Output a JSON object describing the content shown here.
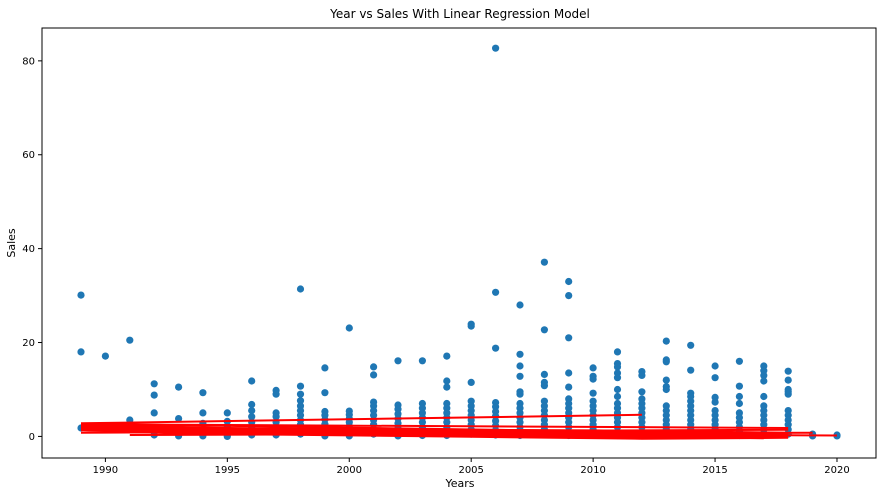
{
  "chart_data": {
    "type": "scatter",
    "title": "Year vs Sales With Linear Regression Model",
    "xlabel": "Years",
    "ylabel": "Sales",
    "xlim": [
      1987.4,
      2021.6
    ],
    "ylim": [
      -4.6,
      87.0
    ],
    "xticks": [
      1990,
      1995,
      2000,
      2005,
      2010,
      2015,
      2020
    ],
    "yticks": [
      0,
      20,
      40,
      60,
      80
    ],
    "grid": false,
    "legend": "none",
    "colors": {
      "points": "#1f77b4",
      "regression": "#ff0000"
    },
    "points": [
      [
        1989,
        30.1
      ],
      [
        1989,
        18.0
      ],
      [
        1989,
        1.8
      ],
      [
        1990,
        17.1
      ],
      [
        1990,
        2.1
      ],
      [
        1991,
        20.5
      ],
      [
        1991,
        3.5
      ],
      [
        1991,
        2.2
      ],
      [
        1992,
        11.2
      ],
      [
        1992,
        8.8
      ],
      [
        1992,
        5.0
      ],
      [
        1992,
        1.2
      ],
      [
        1992,
        0.3
      ],
      [
        1993,
        10.5
      ],
      [
        1993,
        3.8
      ],
      [
        1993,
        1.5
      ],
      [
        1993,
        0.1
      ],
      [
        1994,
        9.3
      ],
      [
        1994,
        5.0
      ],
      [
        1994,
        2.8
      ],
      [
        1994,
        1.5
      ],
      [
        1994,
        0.5
      ],
      [
        1994,
        0.1
      ],
      [
        1995,
        5.0
      ],
      [
        1995,
        3.2
      ],
      [
        1995,
        2.0
      ],
      [
        1995,
        1.0
      ],
      [
        1995,
        0.3
      ],
      [
        1995,
        0.0
      ],
      [
        1996,
        11.8
      ],
      [
        1996,
        6.8
      ],
      [
        1996,
        5.5
      ],
      [
        1996,
        4.2
      ],
      [
        1996,
        3.0
      ],
      [
        1996,
        2.0
      ],
      [
        1996,
        1.0
      ],
      [
        1996,
        0.3
      ],
      [
        1997,
        9.8
      ],
      [
        1997,
        9.0
      ],
      [
        1997,
        5.0
      ],
      [
        1997,
        4.2
      ],
      [
        1997,
        3.0
      ],
      [
        1997,
        2.0
      ],
      [
        1997,
        1.0
      ],
      [
        1997,
        0.3
      ],
      [
        1998,
        31.4
      ],
      [
        1998,
        10.7
      ],
      [
        1998,
        9.0
      ],
      [
        1998,
        7.6
      ],
      [
        1998,
        6.5
      ],
      [
        1998,
        5.5
      ],
      [
        1998,
        4.5
      ],
      [
        1998,
        3.5
      ],
      [
        1998,
        2.5
      ],
      [
        1998,
        1.5
      ],
      [
        1998,
        0.5
      ],
      [
        1999,
        14.6
      ],
      [
        1999,
        9.3
      ],
      [
        1999,
        5.3
      ],
      [
        1999,
        4.5
      ],
      [
        1999,
        3.6
      ],
      [
        1999,
        2.6
      ],
      [
        1999,
        1.6
      ],
      [
        1999,
        0.6
      ],
      [
        1999,
        0.1
      ],
      [
        2000,
        23.1
      ],
      [
        2000,
        5.4
      ],
      [
        2000,
        4.6
      ],
      [
        2000,
        3.8
      ],
      [
        2000,
        3.0
      ],
      [
        2000,
        2.2
      ],
      [
        2000,
        1.4
      ],
      [
        2000,
        0.6
      ],
      [
        2000,
        0.1
      ],
      [
        2001,
        14.8
      ],
      [
        2001,
        13.1
      ],
      [
        2001,
        7.3
      ],
      [
        2001,
        6.5
      ],
      [
        2001,
        5.5
      ],
      [
        2001,
        4.5
      ],
      [
        2001,
        3.5
      ],
      [
        2001,
        2.5
      ],
      [
        2001,
        1.5
      ],
      [
        2001,
        0.5
      ],
      [
        2002,
        16.1
      ],
      [
        2002,
        6.7
      ],
      [
        2002,
        5.8
      ],
      [
        2002,
        4.8
      ],
      [
        2002,
        3.8
      ],
      [
        2002,
        2.8
      ],
      [
        2002,
        1.8
      ],
      [
        2002,
        0.8
      ],
      [
        2002,
        0.1
      ],
      [
        2003,
        16.1
      ],
      [
        2003,
        7.0
      ],
      [
        2003,
        6.0
      ],
      [
        2003,
        5.0
      ],
      [
        2003,
        4.0
      ],
      [
        2003,
        3.0
      ],
      [
        2003,
        2.0
      ],
      [
        2003,
        1.0
      ],
      [
        2003,
        0.2
      ],
      [
        2004,
        17.1
      ],
      [
        2004,
        11.8
      ],
      [
        2004,
        10.5
      ],
      [
        2004,
        7.0
      ],
      [
        2004,
        6.0
      ],
      [
        2004,
        5.0
      ],
      [
        2004,
        4.0
      ],
      [
        2004,
        3.0
      ],
      [
        2004,
        2.0
      ],
      [
        2004,
        1.0
      ],
      [
        2004,
        0.2
      ],
      [
        2005,
        23.9
      ],
      [
        2005,
        23.5
      ],
      [
        2005,
        11.5
      ],
      [
        2005,
        7.5
      ],
      [
        2005,
        6.5
      ],
      [
        2005,
        5.5
      ],
      [
        2005,
        4.5
      ],
      [
        2005,
        3.5
      ],
      [
        2005,
        2.5
      ],
      [
        2005,
        1.5
      ],
      [
        2005,
        0.5
      ],
      [
        2006,
        82.7
      ],
      [
        2006,
        30.7
      ],
      [
        2006,
        18.8
      ],
      [
        2006,
        7.2
      ],
      [
        2006,
        6.3
      ],
      [
        2006,
        5.3
      ],
      [
        2006,
        4.3
      ],
      [
        2006,
        3.3
      ],
      [
        2006,
        2.3
      ],
      [
        2006,
        1.3
      ],
      [
        2006,
        0.3
      ],
      [
        2007,
        28.0
      ],
      [
        2007,
        17.5
      ],
      [
        2007,
        15.0
      ],
      [
        2007,
        12.8
      ],
      [
        2007,
        9.5
      ],
      [
        2007,
        9.0
      ],
      [
        2007,
        7.0
      ],
      [
        2007,
        6.0
      ],
      [
        2007,
        5.0
      ],
      [
        2007,
        4.0
      ],
      [
        2007,
        3.0
      ],
      [
        2007,
        2.0
      ],
      [
        2007,
        1.0
      ],
      [
        2007,
        0.2
      ],
      [
        2008,
        37.1
      ],
      [
        2008,
        22.7
      ],
      [
        2008,
        13.2
      ],
      [
        2008,
        11.5
      ],
      [
        2008,
        10.8
      ],
      [
        2008,
        7.5
      ],
      [
        2008,
        6.5
      ],
      [
        2008,
        5.5
      ],
      [
        2008,
        4.5
      ],
      [
        2008,
        3.5
      ],
      [
        2008,
        2.5
      ],
      [
        2008,
        1.5
      ],
      [
        2008,
        0.5
      ],
      [
        2009,
        33.0
      ],
      [
        2009,
        30.0
      ],
      [
        2009,
        21.0
      ],
      [
        2009,
        13.5
      ],
      [
        2009,
        10.5
      ],
      [
        2009,
        8.0
      ],
      [
        2009,
        7.0
      ],
      [
        2009,
        6.0
      ],
      [
        2009,
        5.0
      ],
      [
        2009,
        4.0
      ],
      [
        2009,
        3.0
      ],
      [
        2009,
        2.0
      ],
      [
        2009,
        1.0
      ],
      [
        2009,
        0.2
      ],
      [
        2010,
        14.6
      ],
      [
        2010,
        12.8
      ],
      [
        2010,
        12.2
      ],
      [
        2010,
        9.2
      ],
      [
        2010,
        7.5
      ],
      [
        2010,
        6.5
      ],
      [
        2010,
        5.5
      ],
      [
        2010,
        4.5
      ],
      [
        2010,
        3.5
      ],
      [
        2010,
        2.5
      ],
      [
        2010,
        1.5
      ],
      [
        2010,
        0.5
      ],
      [
        2011,
        18.0
      ],
      [
        2011,
        15.5
      ],
      [
        2011,
        14.8
      ],
      [
        2011,
        13.5
      ],
      [
        2011,
        12.5
      ],
      [
        2011,
        10.0
      ],
      [
        2011,
        8.5
      ],
      [
        2011,
        7.0
      ],
      [
        2011,
        6.0
      ],
      [
        2011,
        5.0
      ],
      [
        2011,
        4.0
      ],
      [
        2011,
        3.0
      ],
      [
        2011,
        2.0
      ],
      [
        2011,
        1.0
      ],
      [
        2011,
        0.2
      ],
      [
        2012,
        13.8
      ],
      [
        2012,
        13.0
      ],
      [
        2012,
        9.5
      ],
      [
        2012,
        8.0
      ],
      [
        2012,
        7.0
      ],
      [
        2012,
        6.0
      ],
      [
        2012,
        5.0
      ],
      [
        2012,
        4.0
      ],
      [
        2012,
        3.0
      ],
      [
        2012,
        2.0
      ],
      [
        2012,
        1.0
      ],
      [
        2012,
        0.2
      ],
      [
        2013,
        20.3
      ],
      [
        2013,
        16.3
      ],
      [
        2013,
        15.9
      ],
      [
        2013,
        12.0
      ],
      [
        2013,
        10.6
      ],
      [
        2013,
        10.0
      ],
      [
        2013,
        6.5
      ],
      [
        2013,
        5.5
      ],
      [
        2013,
        4.5
      ],
      [
        2013,
        3.5
      ],
      [
        2013,
        2.5
      ],
      [
        2013,
        1.5
      ],
      [
        2013,
        0.5
      ],
      [
        2014,
        19.4
      ],
      [
        2014,
        14.1
      ],
      [
        2014,
        9.2
      ],
      [
        2014,
        8.5
      ],
      [
        2014,
        7.5
      ],
      [
        2014,
        6.5
      ],
      [
        2014,
        5.5
      ],
      [
        2014,
        4.5
      ],
      [
        2014,
        3.5
      ],
      [
        2014,
        2.5
      ],
      [
        2014,
        1.5
      ],
      [
        2014,
        0.5
      ],
      [
        2015,
        15.0
      ],
      [
        2015,
        12.5
      ],
      [
        2015,
        8.3
      ],
      [
        2015,
        7.3
      ],
      [
        2015,
        5.5
      ],
      [
        2015,
        4.5
      ],
      [
        2015,
        3.5
      ],
      [
        2015,
        2.5
      ],
      [
        2015,
        1.5
      ],
      [
        2015,
        0.5
      ],
      [
        2016,
        16.0
      ],
      [
        2016,
        10.7
      ],
      [
        2016,
        8.5
      ],
      [
        2016,
        7.0
      ],
      [
        2016,
        5.0
      ],
      [
        2016,
        4.0
      ],
      [
        2016,
        3.0
      ],
      [
        2016,
        2.0
      ],
      [
        2016,
        1.0
      ],
      [
        2016,
        0.2
      ],
      [
        2017,
        15.0
      ],
      [
        2017,
        14.0
      ],
      [
        2017,
        13.0
      ],
      [
        2017,
        11.8
      ],
      [
        2017,
        8.5
      ],
      [
        2017,
        6.5
      ],
      [
        2017,
        5.5
      ],
      [
        2017,
        4.5
      ],
      [
        2017,
        3.5
      ],
      [
        2017,
        2.5
      ],
      [
        2017,
        1.5
      ],
      [
        2017,
        0.5
      ],
      [
        2018,
        13.9
      ],
      [
        2018,
        12.0
      ],
      [
        2018,
        10.0
      ],
      [
        2018,
        9.5
      ],
      [
        2018,
        9.0
      ],
      [
        2018,
        5.5
      ],
      [
        2018,
        4.5
      ],
      [
        2018,
        3.5
      ],
      [
        2018,
        2.5
      ],
      [
        2018,
        1.5
      ],
      [
        2018,
        0.5
      ],
      [
        2019,
        0.5
      ],
      [
        2019,
        0.1
      ],
      [
        2020,
        0.3
      ],
      [
        2020,
        0.1
      ]
    ],
    "regression_segments": [
      [
        [
          1989,
          2.8
        ],
        [
          2012,
          4.6
        ]
      ],
      [
        [
          1989,
          2.6
        ],
        [
          2018,
          1.8
        ]
      ],
      [
        [
          1989,
          0.8
        ],
        [
          2018,
          1.4
        ]
      ],
      [
        [
          1989,
          2.7
        ],
        [
          2018,
          0.5
        ]
      ],
      [
        [
          1991,
          0.3
        ],
        [
          2019,
          0.8
        ]
      ],
      [
        [
          1995,
          0.9
        ],
        [
          2020,
          0.2
        ]
      ],
      [
        [
          1993,
          1.9
        ],
        [
          2017,
          -0.4
        ]
      ]
    ]
  }
}
